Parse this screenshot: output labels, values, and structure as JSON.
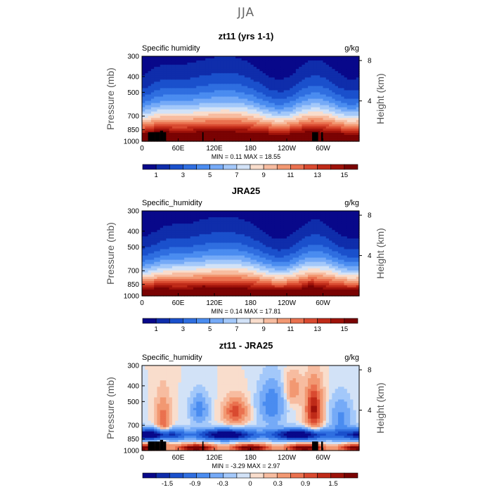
{
  "figure": {
    "suptitle": "JJA",
    "colors": {
      "background": "#ffffff",
      "topography": "#000000"
    }
  },
  "chart_data": [
    {
      "type": "heatmap",
      "title": "zt11 (yrs 1-1)",
      "left_label": "Specific humidity",
      "units": "g/kg",
      "ylabel": "Pressure (mb)",
      "y2label": "Height (km)",
      "x_ticks": [
        "0",
        "60E",
        "120E",
        "180",
        "120W",
        "60W"
      ],
      "x_tick_lon": [
        0,
        60,
        120,
        180,
        240,
        300
      ],
      "xlim": [
        0,
        360
      ],
      "y_ticks": [
        300,
        400,
        500,
        700,
        850,
        1000
      ],
      "ylim": [
        1000,
        300
      ],
      "y2_ticks": [
        8,
        4
      ],
      "stats": "MIN =    0.11   MAX =   18.55",
      "colorbar_labels": [
        "1",
        "3",
        "5",
        "7",
        "9",
        "11",
        "13",
        "15"
      ],
      "colorbar_colors": [
        "#08088a",
        "#0f2dab",
        "#1a50cc",
        "#2f6ee0",
        "#4a8cf0",
        "#75aaf7",
        "#a3c8fa",
        "#d2e2f7",
        "#f9ddcc",
        "#f7bca0",
        "#f29872",
        "#ea714f",
        "#d94a30",
        "#bf2a18",
        "#9e120a",
        "#7a0303"
      ],
      "mode": "abs",
      "range": [
        0,
        18.55
      ],
      "show_topography": true
    },
    {
      "type": "heatmap",
      "title": "JRA25",
      "left_label": "Specific_humidity",
      "units": "g/kg",
      "ylabel": "Pressure (mb)",
      "y2label": "Height (km)",
      "x_ticks": [
        "0",
        "60E",
        "120E",
        "180",
        "120W",
        "60W"
      ],
      "x_tick_lon": [
        0,
        60,
        120,
        180,
        240,
        300
      ],
      "xlim": [
        0,
        360
      ],
      "y_ticks": [
        300,
        400,
        500,
        700,
        850,
        1000
      ],
      "ylim": [
        1000,
        300
      ],
      "y2_ticks": [
        8,
        4
      ],
      "stats": "MIN =    0.14   MAX =   17.81",
      "colorbar_labels": [
        "1",
        "3",
        "5",
        "7",
        "9",
        "11",
        "13",
        "15"
      ],
      "colorbar_colors": [
        "#08088a",
        "#0f2dab",
        "#1a50cc",
        "#2f6ee0",
        "#4a8cf0",
        "#75aaf7",
        "#a3c8fa",
        "#d2e2f7",
        "#f9ddcc",
        "#f7bca0",
        "#f29872",
        "#ea714f",
        "#d94a30",
        "#bf2a18",
        "#9e120a",
        "#7a0303"
      ],
      "mode": "abs",
      "range": [
        0,
        17.81
      ],
      "show_topography": false
    },
    {
      "type": "heatmap",
      "title": "zt11 - JRA25",
      "left_label": "Specific_humidity",
      "units": "g/kg",
      "ylabel": "Pressure (mb)",
      "y2label": "Height (km)",
      "x_ticks": [
        "0",
        "60E",
        "120E",
        "180",
        "120W",
        "60W"
      ],
      "x_tick_lon": [
        0,
        60,
        120,
        180,
        240,
        300
      ],
      "xlim": [
        0,
        360
      ],
      "y_ticks": [
        300,
        400,
        500,
        700,
        850,
        1000
      ],
      "ylim": [
        1000,
        300
      ],
      "y2_ticks": [
        8,
        4
      ],
      "stats": "MIN =   -3.29   MAX =    2.97",
      "colorbar_labels": [
        "-1.5",
        "-0.9",
        "-0.3",
        "0",
        "0.3",
        "0.9",
        "1.5"
      ],
      "colorbar_colors": [
        "#08088a",
        "#0f2dab",
        "#1a50cc",
        "#2f6ee0",
        "#4a8cf0",
        "#75aaf7",
        "#a3c8fa",
        "#d2e2f7",
        "#f9ddcc",
        "#f7bca0",
        "#f29872",
        "#ea714f",
        "#d94a30",
        "#bf2a18",
        "#9e120a",
        "#7a0303"
      ],
      "mode": "diff",
      "range": [
        -3.29,
        2.97
      ],
      "show_topography": true
    }
  ]
}
